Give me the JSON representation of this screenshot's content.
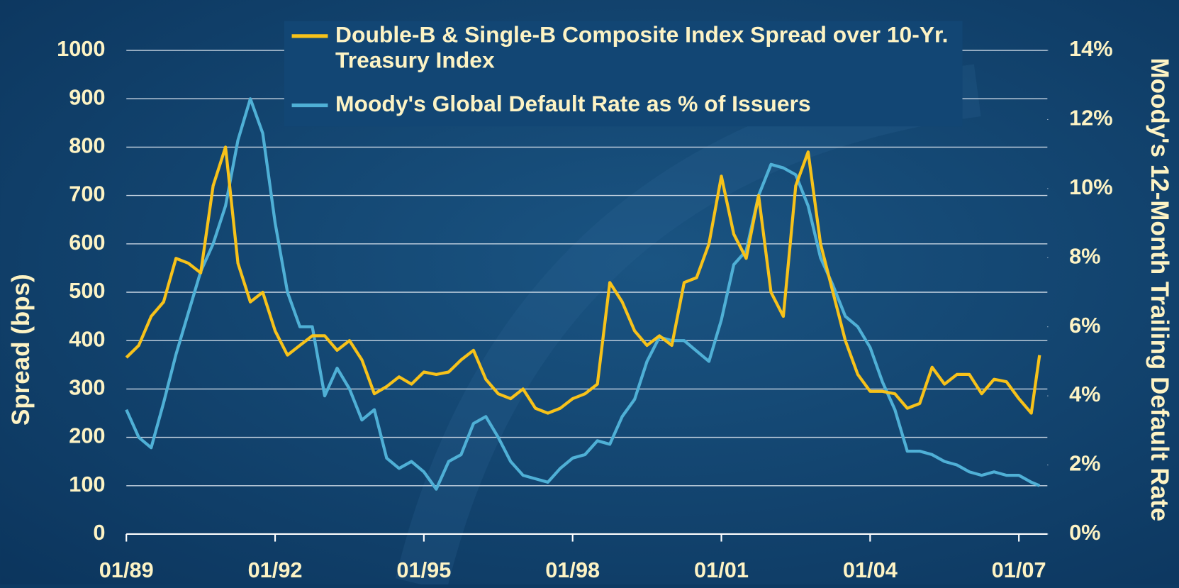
{
  "chart_data": {
    "type": "line",
    "ylabel": "Spread (bps)",
    "y2label": "Moody's 12-Month Trailing Default Rate",
    "x": [
      "01/89",
      "04/89",
      "07/89",
      "10/89",
      "01/90",
      "04/90",
      "07/90",
      "10/90",
      "01/91",
      "04/91",
      "07/91",
      "10/91",
      "01/92",
      "04/92",
      "07/92",
      "10/92",
      "01/93",
      "04/93",
      "07/93",
      "10/93",
      "01/94",
      "04/94",
      "07/94",
      "10/94",
      "01/95",
      "04/95",
      "07/95",
      "10/95",
      "01/96",
      "04/96",
      "07/96",
      "10/96",
      "01/97",
      "04/97",
      "07/97",
      "10/97",
      "01/98",
      "04/98",
      "07/98",
      "10/98",
      "01/99",
      "04/99",
      "07/99",
      "10/99",
      "01/00",
      "04/00",
      "07/00",
      "10/00",
      "01/01",
      "04/01",
      "07/01",
      "10/01",
      "01/02",
      "04/02",
      "07/02",
      "10/02",
      "01/03",
      "04/03",
      "07/03",
      "10/03",
      "01/04",
      "04/04",
      "07/04",
      "10/04",
      "01/05",
      "04/05",
      "07/05",
      "10/05",
      "01/06",
      "04/06",
      "07/06",
      "10/06",
      "01/07",
      "04/07",
      "06/07"
    ],
    "series": [
      {
        "name": "Double-B & Single-B Composite Index Spread over 10-Yr. Treasury Index",
        "color": "#f7c21a",
        "values": [
          365,
          390,
          450,
          480,
          570,
          560,
          540,
          720,
          800,
          560,
          480,
          500,
          420,
          370,
          390,
          410,
          410,
          380,
          400,
          360,
          290,
          305,
          325,
          310,
          335,
          330,
          335,
          360,
          380,
          320,
          290,
          280,
          300,
          260,
          250,
          260,
          280,
          290,
          310,
          520,
          480,
          420,
          390,
          410,
          390,
          520,
          530,
          600,
          740,
          620,
          570,
          700,
          500,
          450,
          720,
          790,
          600,
          500,
          400,
          330,
          295,
          295,
          290,
          260,
          270,
          345,
          310,
          330,
          330,
          290,
          320,
          315,
          280,
          250,
          370
        ]
      },
      {
        "name": "Moody's Global Default Rate as % of Issuers",
        "color": "#4fb0d6",
        "axis": "y2",
        "values": [
          3.6,
          2.8,
          2.5,
          3.8,
          5.2,
          6.4,
          7.6,
          8.4,
          9.5,
          11.4,
          12.6,
          11.6,
          9.0,
          7.0,
          6.0,
          6.0,
          4.0,
          4.8,
          4.2,
          3.3,
          3.6,
          2.2,
          1.9,
          2.1,
          1.8,
          1.3,
          2.1,
          2.3,
          3.2,
          3.4,
          2.8,
          2.1,
          1.7,
          1.6,
          1.5,
          1.9,
          2.2,
          2.3,
          2.7,
          2.6,
          3.4,
          3.9,
          5.0,
          5.7,
          5.6,
          5.6,
          5.3,
          5.0,
          6.2,
          7.8,
          8.2,
          9.8,
          10.7,
          10.6,
          10.4,
          9.5,
          8.0,
          7.2,
          6.3,
          6.0,
          5.4,
          4.4,
          3.6,
          2.4,
          2.4,
          2.3,
          2.1,
          2.0,
          1.8,
          1.7,
          1.8,
          1.7,
          1.7,
          1.5,
          1.4
        ]
      }
    ],
    "xlim": [
      "01/89",
      "06/07"
    ],
    "xticks": [
      "01/89",
      "01/92",
      "01/95",
      "01/98",
      "01/01",
      "01/04",
      "01/07"
    ],
    "ylim": [
      0,
      1000
    ],
    "yticks": [
      0,
      100,
      200,
      300,
      400,
      500,
      600,
      700,
      800,
      900,
      1000
    ],
    "y2lim": [
      0,
      14
    ],
    "y2ticks": [
      {
        "value": 0,
        "label": "0%"
      },
      {
        "value": 2,
        "label": "2%"
      },
      {
        "value": 4,
        "label": "4%"
      },
      {
        "value": 6,
        "label": "6%"
      },
      {
        "value": 8,
        "label": "8%"
      },
      {
        "value": 10,
        "label": "10%"
      },
      {
        "value": 12,
        "label": "12%"
      },
      {
        "value": 14,
        "label": "14%"
      }
    ],
    "grid": true,
    "legend": "top"
  }
}
